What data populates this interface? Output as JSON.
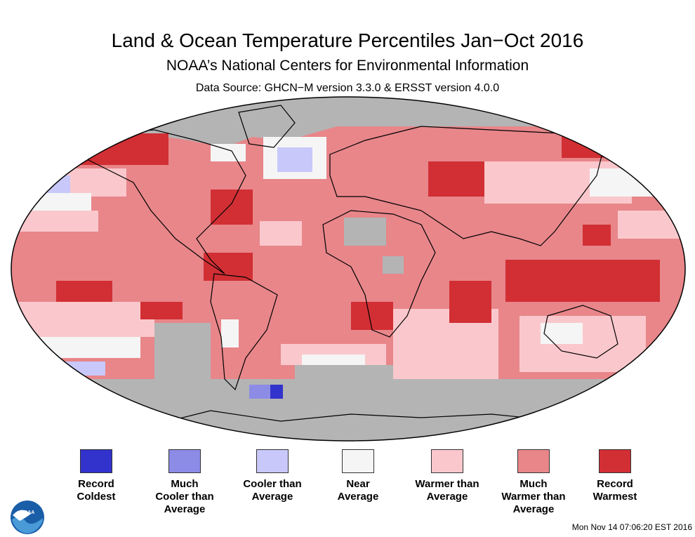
{
  "title": "Land & Ocean Temperature Percentiles Jan−Oct 2016",
  "subtitle": "NOAA’s National Centers for Environmental Information",
  "source": "Data Source: GHCN−M version 3.3.0 & ERSST version 4.0.0",
  "timestamp": "Mon Nov 14 07:06:20 EST 2016",
  "logo": {
    "icon": "noaa-logo-icon",
    "text": "NOAA"
  },
  "colors": {
    "record_coldest": "#3232cc",
    "much_cooler": "#8c8ce6",
    "cooler": "#c8c8fa",
    "near": "#f5f5f5",
    "warmer": "#fac8cc",
    "much_warmer": "#e8868a",
    "record_warmest": "#d12f34",
    "no_data": "#b4b4b4"
  },
  "legend": [
    {
      "key": "record_coldest",
      "label": "Record\nColdest"
    },
    {
      "key": "much_cooler",
      "label": "Much\nCooler than\nAverage"
    },
    {
      "key": "cooler",
      "label": "Cooler than\nAverage"
    },
    {
      "key": "near",
      "label": "Near\nAverage"
    },
    {
      "key": "warmer",
      "label": "Warmer than\nAverage"
    },
    {
      "key": "much_warmer",
      "label": "Much\nWarmer than\nAverage"
    },
    {
      "key": "record_warmest",
      "label": "Record\nWarmest"
    }
  ]
}
